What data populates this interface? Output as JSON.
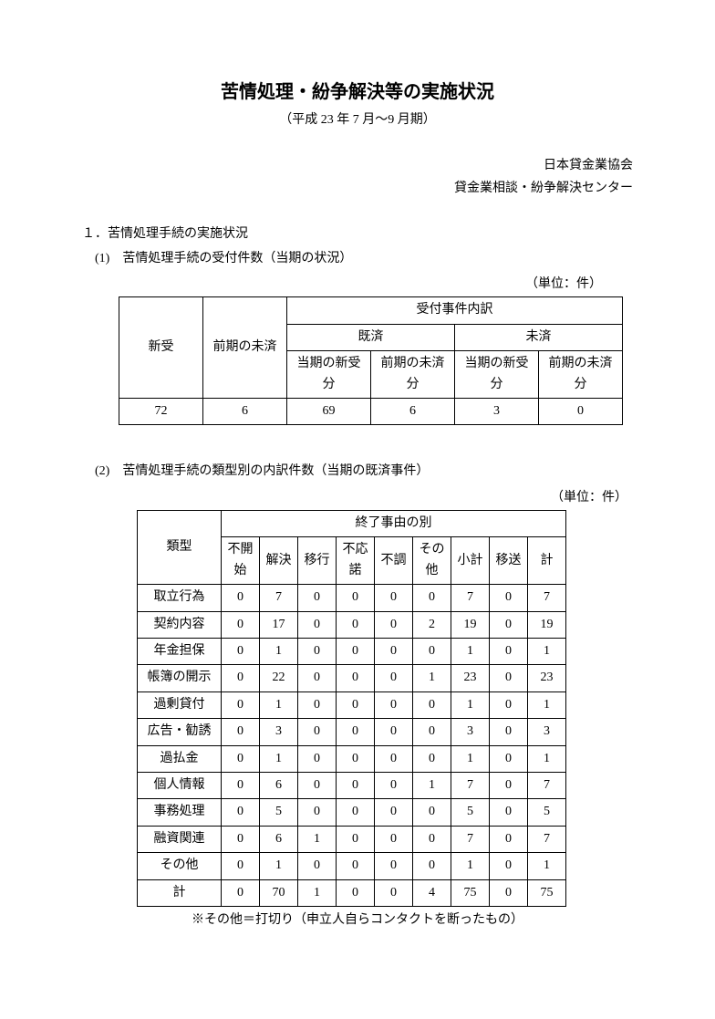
{
  "title": "苦情処理・紛争解決等の実施状況",
  "subtitle": "（平成 23 年 7 月～9 月期）",
  "org1": "日本貸金業協会",
  "org2": "貸金業相談・紛争解決センター",
  "section1": "１．苦情処理手続の実施状況",
  "subsection1": "(1)　苦情処理手続の受付件数（当期の状況）",
  "unit_label": "（単位：件）",
  "table1": {
    "header_top": "受付事件内訳",
    "col_new": "新受",
    "col_prev": "前期の未済",
    "col_done": "既済",
    "col_pending": "未済",
    "sub_new": "当期の新受分",
    "sub_prev": "前期の未済分",
    "row": [
      "72",
      "6",
      "69",
      "6",
      "3",
      "0"
    ]
  },
  "subsection2": "(2)　苦情処理手続の類型別の内訳件数（当期の既済事件）",
  "table2": {
    "col_type": "類型",
    "col_reason": "終了事由の別",
    "cols": [
      "不開始",
      "解決",
      "移行",
      "不応諾",
      "不調",
      "その他",
      "小計",
      "移送",
      "計"
    ],
    "rows": [
      {
        "label": "取立行為",
        "v": [
          "0",
          "7",
          "0",
          "0",
          "0",
          "0",
          "7",
          "0",
          "7"
        ]
      },
      {
        "label": "契約内容",
        "v": [
          "0",
          "17",
          "0",
          "0",
          "0",
          "2",
          "19",
          "0",
          "19"
        ]
      },
      {
        "label": "年金担保",
        "v": [
          "0",
          "1",
          "0",
          "0",
          "0",
          "0",
          "1",
          "0",
          "1"
        ]
      },
      {
        "label": "帳簿の開示",
        "v": [
          "0",
          "22",
          "0",
          "0",
          "0",
          "1",
          "23",
          "0",
          "23"
        ]
      },
      {
        "label": "過剰貸付",
        "v": [
          "0",
          "1",
          "0",
          "0",
          "0",
          "0",
          "1",
          "0",
          "1"
        ]
      },
      {
        "label": "広告・勧誘",
        "v": [
          "0",
          "3",
          "0",
          "0",
          "0",
          "0",
          "3",
          "0",
          "3"
        ]
      },
      {
        "label": "過払金",
        "v": [
          "0",
          "1",
          "0",
          "0",
          "0",
          "0",
          "1",
          "0",
          "1"
        ]
      },
      {
        "label": "個人情報",
        "v": [
          "0",
          "6",
          "0",
          "0",
          "0",
          "1",
          "7",
          "0",
          "7"
        ]
      },
      {
        "label": "事務処理",
        "v": [
          "0",
          "5",
          "0",
          "0",
          "0",
          "0",
          "5",
          "0",
          "5"
        ]
      },
      {
        "label": "融資関連",
        "v": [
          "0",
          "6",
          "1",
          "0",
          "0",
          "0",
          "7",
          "0",
          "7"
        ]
      },
      {
        "label": "その他",
        "v": [
          "0",
          "1",
          "0",
          "0",
          "0",
          "0",
          "1",
          "0",
          "1"
        ]
      },
      {
        "label": "計",
        "v": [
          "0",
          "70",
          "1",
          "0",
          "0",
          "4",
          "75",
          "0",
          "75"
        ]
      }
    ]
  },
  "footnote": "※その他＝打切り（申立人自らコンタクトを断ったもの）",
  "col_widths_t1": [
    92,
    92,
    92,
    92,
    92,
    92
  ],
  "col_widths_t2": [
    92,
    42,
    42,
    42,
    42,
    42,
    42,
    42,
    42,
    42
  ]
}
